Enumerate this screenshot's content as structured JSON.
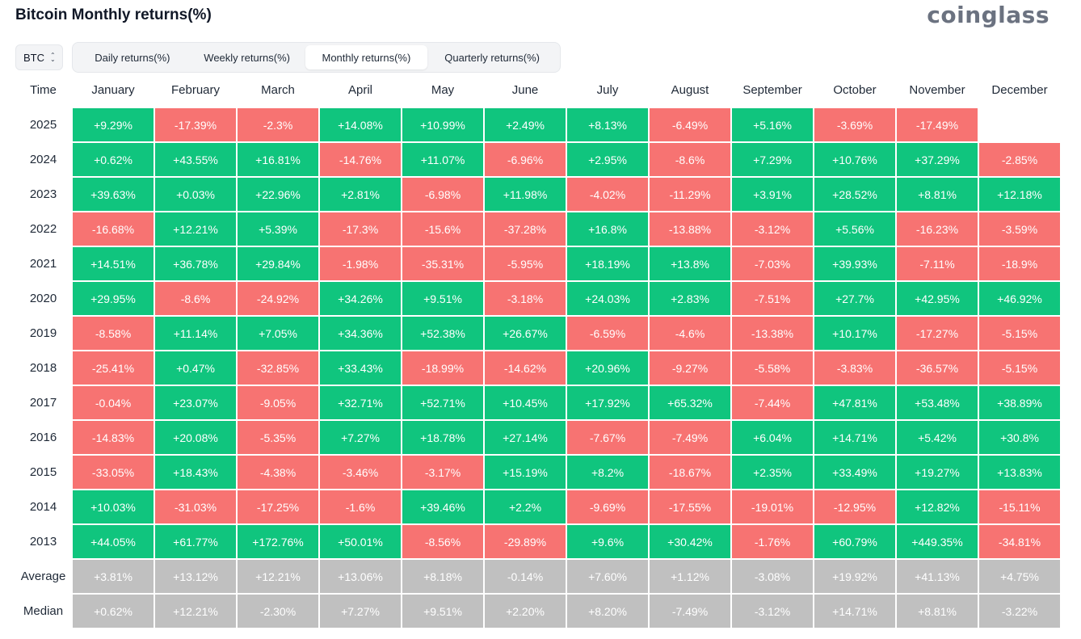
{
  "title": "Bitcoin Monthly returns(%)",
  "brand": "coinglass",
  "asset_select": {
    "value": "BTC"
  },
  "tabs": [
    {
      "label": "Daily returns(%)",
      "active": false
    },
    {
      "label": "Weekly returns(%)",
      "active": false
    },
    {
      "label": "Monthly returns(%)",
      "active": true
    },
    {
      "label": "Quarterly returns(%)",
      "active": false
    }
  ],
  "colors": {
    "positive": "#10c57e",
    "negative": "#f77372",
    "summary": "#c0c0c0"
  },
  "chart_data": {
    "type": "heatmap",
    "title": "Bitcoin Monthly returns(%)",
    "corner_label": "Time",
    "columns": [
      "January",
      "February",
      "March",
      "April",
      "May",
      "June",
      "July",
      "August",
      "September",
      "October",
      "November",
      "December"
    ],
    "rows": [
      {
        "label": "2025",
        "values": [
          "+9.29%",
          "-17.39%",
          "-2.3%",
          "+14.08%",
          "+10.99%",
          "+2.49%",
          "+8.13%",
          "-6.49%",
          "+5.16%",
          "-3.69%",
          "-17.49%",
          ""
        ]
      },
      {
        "label": "2024",
        "values": [
          "+0.62%",
          "+43.55%",
          "+16.81%",
          "-14.76%",
          "+11.07%",
          "-6.96%",
          "+2.95%",
          "-8.6%",
          "+7.29%",
          "+10.76%",
          "+37.29%",
          "-2.85%"
        ]
      },
      {
        "label": "2023",
        "values": [
          "+39.63%",
          "+0.03%",
          "+22.96%",
          "+2.81%",
          "-6.98%",
          "+11.98%",
          "-4.02%",
          "-11.29%",
          "+3.91%",
          "+28.52%",
          "+8.81%",
          "+12.18%"
        ]
      },
      {
        "label": "2022",
        "values": [
          "-16.68%",
          "+12.21%",
          "+5.39%",
          "-17.3%",
          "-15.6%",
          "-37.28%",
          "+16.8%",
          "-13.88%",
          "-3.12%",
          "+5.56%",
          "-16.23%",
          "-3.59%"
        ]
      },
      {
        "label": "2021",
        "values": [
          "+14.51%",
          "+36.78%",
          "+29.84%",
          "-1.98%",
          "-35.31%",
          "-5.95%",
          "+18.19%",
          "+13.8%",
          "-7.03%",
          "+39.93%",
          "-7.11%",
          "-18.9%"
        ]
      },
      {
        "label": "2020",
        "values": [
          "+29.95%",
          "-8.6%",
          "-24.92%",
          "+34.26%",
          "+9.51%",
          "-3.18%",
          "+24.03%",
          "+2.83%",
          "-7.51%",
          "+27.7%",
          "+42.95%",
          "+46.92%"
        ]
      },
      {
        "label": "2019",
        "values": [
          "-8.58%",
          "+11.14%",
          "+7.05%",
          "+34.36%",
          "+52.38%",
          "+26.67%",
          "-6.59%",
          "-4.6%",
          "-13.38%",
          "+10.17%",
          "-17.27%",
          "-5.15%"
        ]
      },
      {
        "label": "2018",
        "values": [
          "-25.41%",
          "+0.47%",
          "-32.85%",
          "+33.43%",
          "-18.99%",
          "-14.62%",
          "+20.96%",
          "-9.27%",
          "-5.58%",
          "-3.83%",
          "-36.57%",
          "-5.15%"
        ]
      },
      {
        "label": "2017",
        "values": [
          "-0.04%",
          "+23.07%",
          "-9.05%",
          "+32.71%",
          "+52.71%",
          "+10.45%",
          "+17.92%",
          "+65.32%",
          "-7.44%",
          "+47.81%",
          "+53.48%",
          "+38.89%"
        ]
      },
      {
        "label": "2016",
        "values": [
          "-14.83%",
          "+20.08%",
          "-5.35%",
          "+7.27%",
          "+18.78%",
          "+27.14%",
          "-7.67%",
          "-7.49%",
          "+6.04%",
          "+14.71%",
          "+5.42%",
          "+30.8%"
        ]
      },
      {
        "label": "2015",
        "values": [
          "-33.05%",
          "+18.43%",
          "-4.38%",
          "-3.46%",
          "-3.17%",
          "+15.19%",
          "+8.2%",
          "-18.67%",
          "+2.35%",
          "+33.49%",
          "+19.27%",
          "+13.83%"
        ]
      },
      {
        "label": "2014",
        "values": [
          "+10.03%",
          "-31.03%",
          "-17.25%",
          "-1.6%",
          "+39.46%",
          "+2.2%",
          "-9.69%",
          "-17.55%",
          "-19.01%",
          "-12.95%",
          "+12.82%",
          "-15.11%"
        ]
      },
      {
        "label": "2013",
        "values": [
          "+44.05%",
          "+61.77%",
          "+172.76%",
          "+50.01%",
          "-8.56%",
          "-29.89%",
          "+9.6%",
          "+30.42%",
          "-1.76%",
          "+60.79%",
          "+449.35%",
          "-34.81%"
        ]
      }
    ],
    "summary_rows": [
      {
        "label": "Average",
        "values": [
          "+3.81%",
          "+13.12%",
          "+12.21%",
          "+13.06%",
          "+8.18%",
          "-0.14%",
          "+7.60%",
          "+1.12%",
          "-3.08%",
          "+19.92%",
          "+41.13%",
          "+4.75%"
        ]
      },
      {
        "label": "Median",
        "values": [
          "+0.62%",
          "+12.21%",
          "-2.30%",
          "+7.27%",
          "+9.51%",
          "+2.20%",
          "+8.20%",
          "-7.49%",
          "-3.12%",
          "+14.71%",
          "+8.81%",
          "-3.22%"
        ]
      }
    ]
  }
}
